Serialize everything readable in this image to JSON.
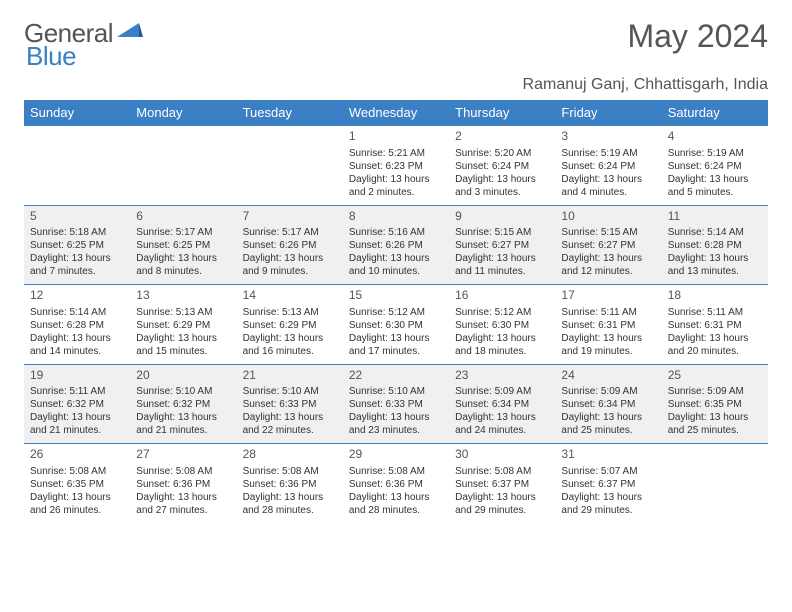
{
  "brand": {
    "text1": "General",
    "text2": "Blue"
  },
  "colors": {
    "accent": "#3b7fc4",
    "header_text": "#ffffff",
    "alt_row_bg": "#f0f0f0",
    "body_text": "#333333",
    "muted_text": "#555555",
    "page_bg": "#ffffff"
  },
  "calendar": {
    "month_title": "May 2024",
    "location": "Ramanuj Ganj, Chhattisgarh, India",
    "day_headers": [
      "Sunday",
      "Monday",
      "Tuesday",
      "Wednesday",
      "Thursday",
      "Friday",
      "Saturday"
    ],
    "first_weekday": 3,
    "days": [
      {
        "n": "1",
        "sr": "5:21 AM",
        "ss": "6:23 PM",
        "dl": "13 hours and 2 minutes."
      },
      {
        "n": "2",
        "sr": "5:20 AM",
        "ss": "6:24 PM",
        "dl": "13 hours and 3 minutes."
      },
      {
        "n": "3",
        "sr": "5:19 AM",
        "ss": "6:24 PM",
        "dl": "13 hours and 4 minutes."
      },
      {
        "n": "4",
        "sr": "5:19 AM",
        "ss": "6:24 PM",
        "dl": "13 hours and 5 minutes."
      },
      {
        "n": "5",
        "sr": "5:18 AM",
        "ss": "6:25 PM",
        "dl": "13 hours and 7 minutes."
      },
      {
        "n": "6",
        "sr": "5:17 AM",
        "ss": "6:25 PM",
        "dl": "13 hours and 8 minutes."
      },
      {
        "n": "7",
        "sr": "5:17 AM",
        "ss": "6:26 PM",
        "dl": "13 hours and 9 minutes."
      },
      {
        "n": "8",
        "sr": "5:16 AM",
        "ss": "6:26 PM",
        "dl": "13 hours and 10 minutes."
      },
      {
        "n": "9",
        "sr": "5:15 AM",
        "ss": "6:27 PM",
        "dl": "13 hours and 11 minutes."
      },
      {
        "n": "10",
        "sr": "5:15 AM",
        "ss": "6:27 PM",
        "dl": "13 hours and 12 minutes."
      },
      {
        "n": "11",
        "sr": "5:14 AM",
        "ss": "6:28 PM",
        "dl": "13 hours and 13 minutes."
      },
      {
        "n": "12",
        "sr": "5:14 AM",
        "ss": "6:28 PM",
        "dl": "13 hours and 14 minutes."
      },
      {
        "n": "13",
        "sr": "5:13 AM",
        "ss": "6:29 PM",
        "dl": "13 hours and 15 minutes."
      },
      {
        "n": "14",
        "sr": "5:13 AM",
        "ss": "6:29 PM",
        "dl": "13 hours and 16 minutes."
      },
      {
        "n": "15",
        "sr": "5:12 AM",
        "ss": "6:30 PM",
        "dl": "13 hours and 17 minutes."
      },
      {
        "n": "16",
        "sr": "5:12 AM",
        "ss": "6:30 PM",
        "dl": "13 hours and 18 minutes."
      },
      {
        "n": "17",
        "sr": "5:11 AM",
        "ss": "6:31 PM",
        "dl": "13 hours and 19 minutes."
      },
      {
        "n": "18",
        "sr": "5:11 AM",
        "ss": "6:31 PM",
        "dl": "13 hours and 20 minutes."
      },
      {
        "n": "19",
        "sr": "5:11 AM",
        "ss": "6:32 PM",
        "dl": "13 hours and 21 minutes."
      },
      {
        "n": "20",
        "sr": "5:10 AM",
        "ss": "6:32 PM",
        "dl": "13 hours and 21 minutes."
      },
      {
        "n": "21",
        "sr": "5:10 AM",
        "ss": "6:33 PM",
        "dl": "13 hours and 22 minutes."
      },
      {
        "n": "22",
        "sr": "5:10 AM",
        "ss": "6:33 PM",
        "dl": "13 hours and 23 minutes."
      },
      {
        "n": "23",
        "sr": "5:09 AM",
        "ss": "6:34 PM",
        "dl": "13 hours and 24 minutes."
      },
      {
        "n": "24",
        "sr": "5:09 AM",
        "ss": "6:34 PM",
        "dl": "13 hours and 25 minutes."
      },
      {
        "n": "25",
        "sr": "5:09 AM",
        "ss": "6:35 PM",
        "dl": "13 hours and 25 minutes."
      },
      {
        "n": "26",
        "sr": "5:08 AM",
        "ss": "6:35 PM",
        "dl": "13 hours and 26 minutes."
      },
      {
        "n": "27",
        "sr": "5:08 AM",
        "ss": "6:36 PM",
        "dl": "13 hours and 27 minutes."
      },
      {
        "n": "28",
        "sr": "5:08 AM",
        "ss": "6:36 PM",
        "dl": "13 hours and 28 minutes."
      },
      {
        "n": "29",
        "sr": "5:08 AM",
        "ss": "6:36 PM",
        "dl": "13 hours and 28 minutes."
      },
      {
        "n": "30",
        "sr": "5:08 AM",
        "ss": "6:37 PM",
        "dl": "13 hours and 29 minutes."
      },
      {
        "n": "31",
        "sr": "5:07 AM",
        "ss": "6:37 PM",
        "dl": "13 hours and 29 minutes."
      }
    ],
    "labels": {
      "sunrise": "Sunrise:",
      "sunset": "Sunset:",
      "daylight": "Daylight:"
    }
  }
}
